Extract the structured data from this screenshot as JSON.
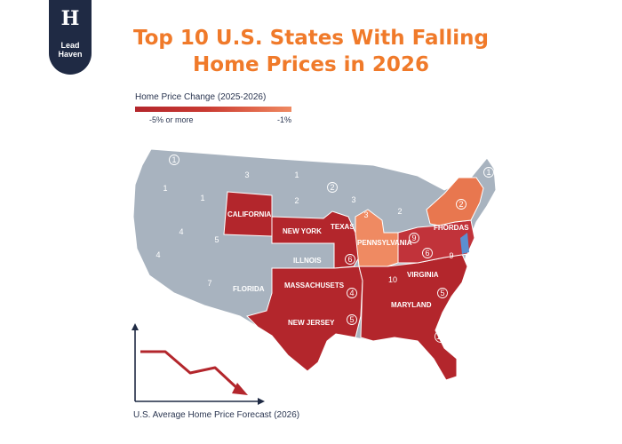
{
  "brand": {
    "mark": "H",
    "line1": "Lead",
    "line2": "Haven"
  },
  "title": {
    "line1": "Top 10 U.S. States With Falling",
    "line2": "Home Prices in 2026"
  },
  "legend": {
    "title": "Home Price Change (2025-2026)",
    "min_label": "-5% or more",
    "max_label": "-1%"
  },
  "colors": {
    "accent": "#f07a2a",
    "dark_red": "#b3262c",
    "mid_red": "#c93a32",
    "light_orange": "#ef8a62",
    "gray": "#a8b3bf",
    "navy": "#1f2a44"
  },
  "map": {
    "labels": {
      "california": "CALIFORNIA",
      "new_york": "NEW YORK",
      "texas": "TEXAS",
      "pennsylvania": "PENNSYLVANIA",
      "florida_ne": "FHORDAS",
      "illinois": "ILLNOIS",
      "florida": "FLORIDA",
      "massachusetts": "MASSACHUSETS",
      "virginia": "VIRGINIA",
      "maryland": "MARYLAND",
      "new_jersey": "NEW JERSEY"
    },
    "numbers": {
      "n1": "1",
      "n2": "1",
      "n3": "1",
      "n4": "3",
      "n5": "1",
      "n6": "2",
      "n7": "2",
      "n8": "3",
      "n9": "2",
      "n10": "3",
      "n11": "4",
      "n12": "5",
      "n13": "4",
      "n14": "7",
      "n15": "6",
      "n16": "4",
      "n17": "5",
      "n18": "5",
      "n19": "10",
      "n20": "9",
      "n21": "6",
      "n22": "9",
      "n23": "10",
      "n24": "2",
      "n25": "1"
    }
  },
  "forecast": {
    "label": "U.S. Average Home Price Forecast (2026)",
    "values": [
      100,
      100,
      88,
      91,
      78
    ]
  }
}
